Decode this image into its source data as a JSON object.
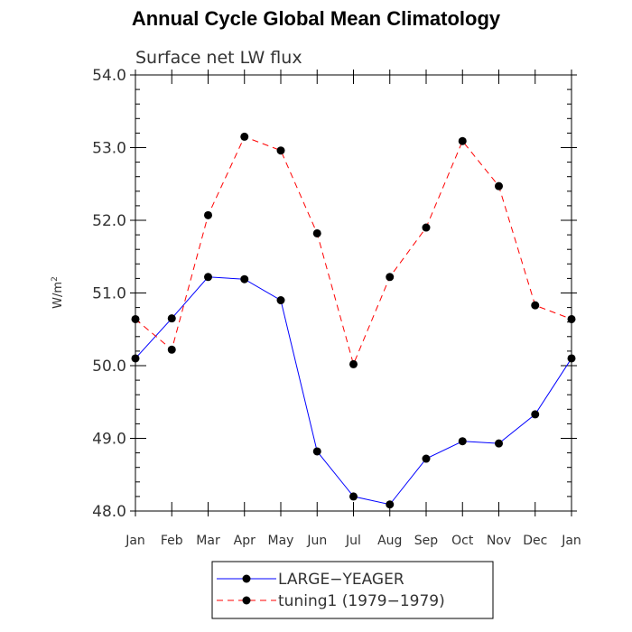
{
  "chart_data": {
    "type": "line",
    "title": "Annual Cycle Global Mean Climatology",
    "subtitle": "Surface net LW flux",
    "ylabel": "W/m",
    "ylabel_sup": "2",
    "categories": [
      "Jan",
      "Feb",
      "Mar",
      "Apr",
      "May",
      "Jun",
      "Jul",
      "Aug",
      "Sep",
      "Oct",
      "Nov",
      "Dec",
      "Jan"
    ],
    "ylim": [
      48.0,
      54.0
    ],
    "yticks": [
      "48.0",
      "49.0",
      "50.0",
      "51.0",
      "52.0",
      "53.0",
      "54.0"
    ],
    "series": [
      {
        "name": "LARGE−YEAGER",
        "color": "#0000ff",
        "dash": "solid",
        "values": [
          50.1,
          50.65,
          51.22,
          51.19,
          50.9,
          48.82,
          48.2,
          48.09,
          48.72,
          48.96,
          48.93,
          49.33,
          50.1
        ]
      },
      {
        "name": "tuning1 (1979−1979)",
        "color": "#ff0000",
        "dash": "dashed",
        "values": [
          50.64,
          50.22,
          52.07,
          53.15,
          52.96,
          51.82,
          50.02,
          51.22,
          51.9,
          53.09,
          52.47,
          50.83,
          50.64
        ]
      }
    ]
  }
}
